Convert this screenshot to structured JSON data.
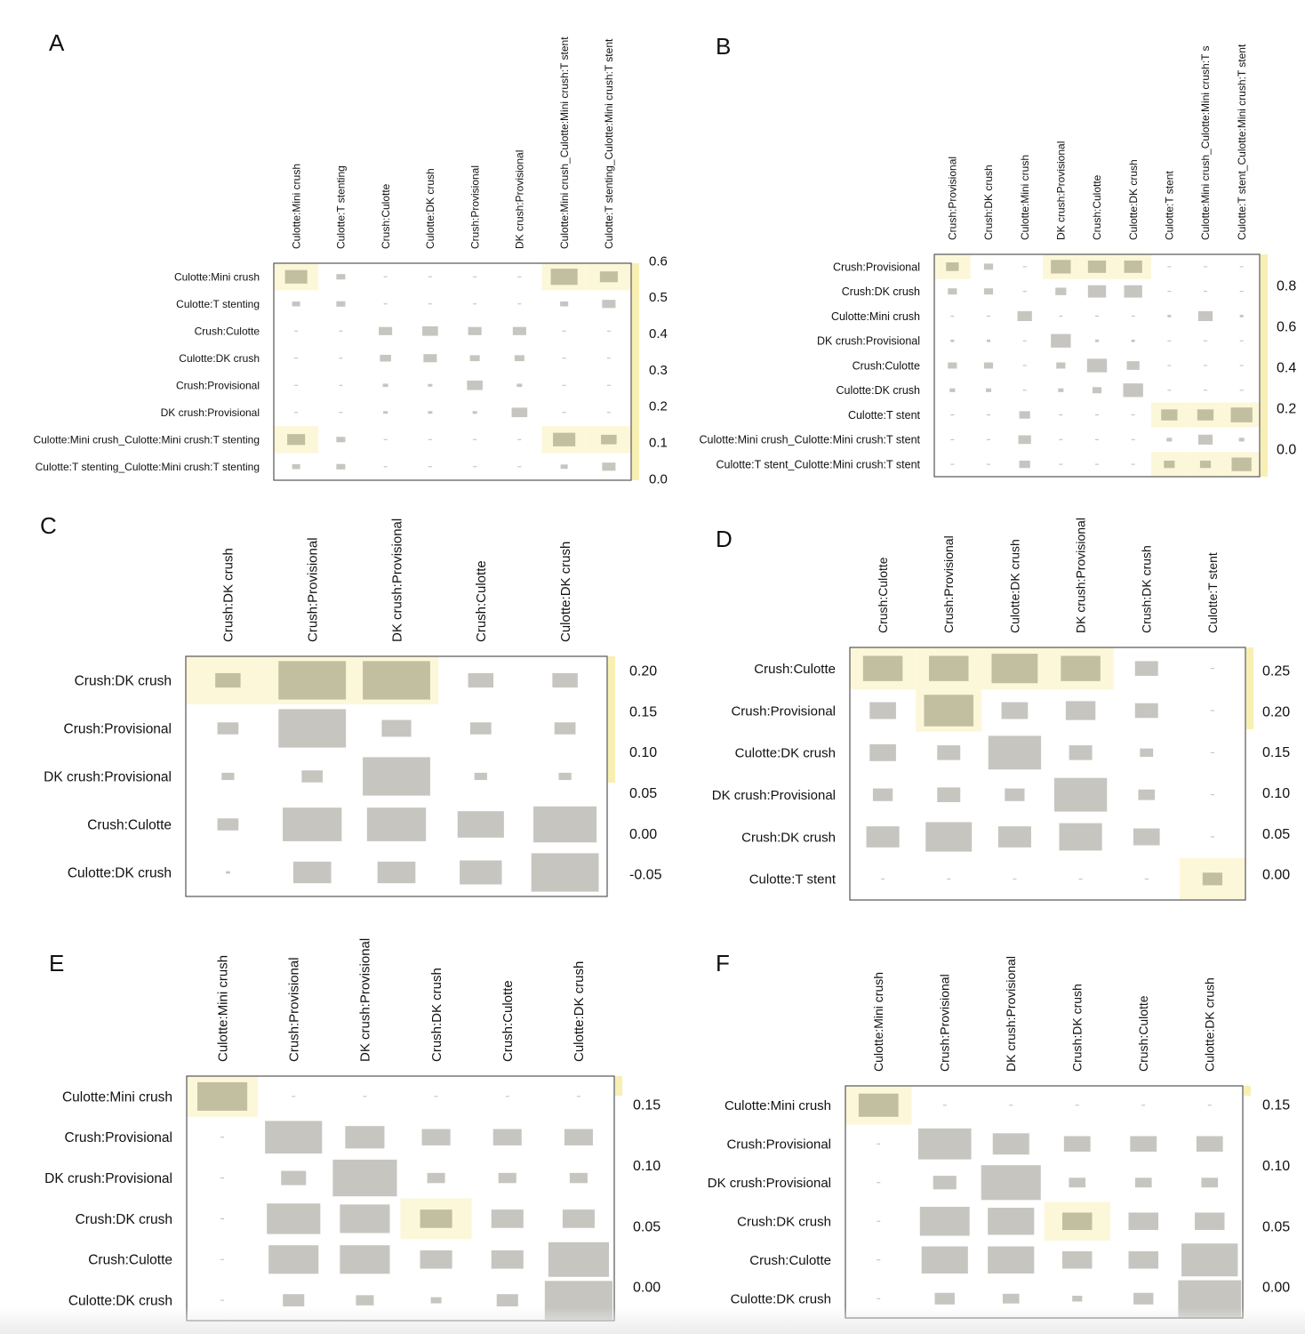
{
  "figure": {
    "description_panels": [
      "A",
      "B",
      "C",
      "D",
      "E",
      "F"
    ]
  },
  "chart_data": [
    {
      "panel": "A",
      "type": "heatmap",
      "title": "A",
      "row_labels": [
        "Culotte:Mini crush",
        "Culotte:T stenting",
        "Crush:Culotte",
        "Culotte:DK crush",
        "Crush:Provisional",
        "DK crush:Provisional",
        "Culotte:Mini crush_Culotte:Mini crush:T stenting",
        "Culotte:T stenting_Culotte:Mini crush:T stenting"
      ],
      "col_labels": [
        "Culotte:Mini crush",
        "Culotte:T stenting",
        "Crush:Culotte",
        "Culotte:DK crush",
        "Crush:Provisional",
        "DK crush:Provisional",
        "Culotte:Mini crush_Culotte:Mini crush:T stent",
        "Culotte:T stenting_Culotte:Mini crush:T stent"
      ],
      "colorbar_ticks": [
        "0.6",
        "0.5",
        "0.4",
        "0.3",
        "0.2",
        "0.1",
        "0.0"
      ],
      "values": [
        [
          0.5,
          0.2,
          0,
          0,
          0,
          0,
          0.6,
          0.4
        ],
        [
          0.18,
          0.2,
          0,
          0,
          0,
          0,
          0.18,
          0.3
        ],
        [
          0,
          0,
          0.3,
          0.35,
          0.3,
          0.3,
          0,
          0
        ],
        [
          0,
          0,
          0.25,
          0.3,
          0.22,
          0.22,
          0,
          0
        ],
        [
          0,
          0,
          0.12,
          0.1,
          0.35,
          0.12,
          0,
          0
        ],
        [
          0,
          0,
          0.1,
          0.1,
          0.1,
          0.35,
          0,
          0
        ],
        [
          0.4,
          0.2,
          0,
          0,
          0,
          0,
          0.5,
          0.35
        ],
        [
          0.18,
          0.2,
          0,
          0,
          0,
          0,
          0.16,
          0.3
        ]
      ],
      "highlight": [
        [
          0,
          0
        ],
        [
          0,
          6
        ],
        [
          0,
          7
        ],
        [
          6,
          0
        ],
        [
          6,
          6
        ],
        [
          6,
          7
        ]
      ]
    },
    {
      "panel": "B",
      "type": "heatmap",
      "title": "B",
      "row_labels": [
        "Crush:Provisional",
        "Crush:DK crush",
        "Culotte:Mini crush",
        "DK crush:Provisional",
        "Crush:Culotte",
        "Culotte:DK crush",
        "Culotte:T stent",
        "Culotte:Mini crush_Culotte:Mini crush:T stent",
        "Culotte:T stent_Culotte:Mini crush:T stent"
      ],
      "col_labels": [
        "Crush:Provisional",
        "Crush:DK crush",
        "Culotte:Mini crush",
        "DK crush:Provisional",
        "Crush:Culotte",
        "Culotte:DK crush",
        "Culotte:T stent",
        "Culotte:Mini crush_Culotte:Mini crush:T s",
        "Culotte:T stent_Culotte:Mini crush:T stent"
      ],
      "colorbar_ticks": [
        "0.8",
        "0.6",
        "0.4",
        "0.2",
        "0.0"
      ],
      "values": [
        [
          0.35,
          0.25,
          0,
          0.55,
          0.5,
          0.5,
          0,
          0,
          0
        ],
        [
          0.25,
          0.25,
          0,
          0.3,
          0.5,
          0.5,
          0,
          0,
          0
        ],
        [
          0,
          0,
          0.4,
          0,
          0,
          0,
          0.1,
          0.4,
          0.1
        ],
        [
          0.1,
          0.1,
          0,
          0.55,
          0.1,
          0.1,
          0,
          0,
          0
        ],
        [
          0.25,
          0.25,
          0,
          0.25,
          0.55,
          0.35,
          0,
          0,
          0
        ],
        [
          0.15,
          0.15,
          0,
          0.15,
          0.25,
          0.55,
          0,
          0,
          0
        ],
        [
          0,
          0,
          0.3,
          0,
          0,
          0,
          0.45,
          0.45,
          0.6
        ],
        [
          0,
          0,
          0.35,
          0,
          0,
          0,
          0.15,
          0.4,
          0.15
        ],
        [
          0,
          0,
          0.3,
          0,
          0,
          0,
          0.3,
          0.3,
          0.55
        ]
      ],
      "highlight": [
        [
          0,
          0
        ],
        [
          0,
          3
        ],
        [
          0,
          4
        ],
        [
          0,
          5
        ],
        [
          6,
          6
        ],
        [
          6,
          7
        ],
        [
          6,
          8
        ],
        [
          8,
          6
        ],
        [
          8,
          7
        ],
        [
          8,
          8
        ]
      ]
    },
    {
      "panel": "C",
      "type": "heatmap",
      "title": "C",
      "row_labels": [
        "Crush:DK crush",
        "Crush:Provisional",
        "DK crush:Provisional",
        "Crush:Culotte",
        "Culotte:DK crush"
      ],
      "col_labels": [
        "Crush:DK crush",
        "Crush:Provisional",
        "DK crush:Provisional",
        "Crush:Culotte",
        "Culotte:DK crush"
      ],
      "colorbar_ticks": [
        "0.20",
        "0.15",
        "0.10",
        "0.05",
        "0.00",
        "-0.05"
      ],
      "values": [
        [
          0.3,
          0.8,
          0.8,
          0.3,
          0.3
        ],
        [
          0.25,
          0.8,
          0.35,
          0.25,
          0.25
        ],
        [
          0.15,
          0.25,
          0.8,
          0.15,
          0.15
        ],
        [
          0.25,
          0.7,
          0.7,
          0.55,
          0.75
        ],
        [
          0.05,
          0.45,
          0.45,
          0.5,
          0.8
        ]
      ],
      "highlight": [
        [
          0,
          0
        ],
        [
          0,
          1
        ],
        [
          0,
          2
        ]
      ]
    },
    {
      "panel": "D",
      "type": "heatmap",
      "title": "D",
      "row_labels": [
        "Crush:Culotte",
        "Crush:Provisional",
        "Culotte:DK crush",
        "DK crush:Provisional",
        "Crush:DK crush",
        "Culotte:T stent"
      ],
      "col_labels": [
        "Crush:Culotte",
        "Crush:Provisional",
        "Culotte:DK crush",
        "DK crush:Provisional",
        "Crush:DK crush",
        "Culotte:T stent"
      ],
      "colorbar_ticks": [
        "0.25",
        "0.20",
        "0.15",
        "0.10",
        "0.05",
        "0.00"
      ],
      "values": [
        [
          0.6,
          0.6,
          0.7,
          0.6,
          0.35,
          0
        ],
        [
          0.4,
          0.75,
          0.4,
          0.45,
          0.35,
          0
        ],
        [
          0.4,
          0.35,
          0.8,
          0.35,
          0.2,
          0
        ],
        [
          0.3,
          0.35,
          0.3,
          0.8,
          0.25,
          0
        ],
        [
          0.5,
          0.7,
          0.5,
          0.65,
          0.4,
          0
        ],
        [
          0,
          0,
          0,
          0,
          0,
          0.3
        ]
      ],
      "highlight": [
        [
          0,
          0
        ],
        [
          0,
          1
        ],
        [
          0,
          2
        ],
        [
          0,
          3
        ],
        [
          1,
          1
        ],
        [
          5,
          5
        ]
      ]
    },
    {
      "panel": "E",
      "type": "heatmap",
      "title": "E",
      "row_labels": [
        "Culotte:Mini crush",
        "Crush:Provisional",
        "DK crush:Provisional",
        "Crush:DK crush",
        "Crush:Culotte",
        "Culotte:DK crush"
      ],
      "col_labels": [
        "Culotte:Mini crush",
        "Crush:Provisional",
        "DK crush:Provisional",
        "Crush:DK crush",
        "Crush:Culotte",
        "Culotte:DK crush"
      ],
      "colorbar_ticks": [
        "0.15",
        "0.10",
        "0.05",
        "0.00"
      ],
      "values": [
        [
          0.7,
          0,
          0,
          0,
          0,
          0
        ],
        [
          0,
          0.8,
          0.55,
          0.4,
          0.4,
          0.4
        ],
        [
          0,
          0.35,
          0.9,
          0.25,
          0.25,
          0.25
        ],
        [
          0,
          0.75,
          0.7,
          0.45,
          0.45,
          0.45
        ],
        [
          0,
          0.7,
          0.7,
          0.45,
          0.45,
          0.85
        ],
        [
          0,
          0.3,
          0.25,
          0.15,
          0.3,
          0.95
        ]
      ],
      "highlight": [
        [
          0,
          0
        ],
        [
          3,
          3
        ]
      ]
    },
    {
      "panel": "F",
      "type": "heatmap",
      "title": "F",
      "row_labels": [
        "Culotte:Mini crush",
        "Crush:Provisional",
        "DK crush:Provisional",
        "Crush:DK crush",
        "Crush:Culotte",
        "Culotte:DK crush"
      ],
      "col_labels": [
        "Culotte:Mini crush",
        "Crush:Provisional",
        "DK crush:Provisional",
        "Crush:DK crush",
        "Crush:Culotte",
        "Culotte:DK crush"
      ],
      "colorbar_ticks": [
        "0.15",
        "0.10",
        "0.05",
        "0.00"
      ],
      "values": [
        [
          0.6,
          0,
          0,
          0,
          0,
          0
        ],
        [
          0,
          0.8,
          0.55,
          0.4,
          0.4,
          0.4
        ],
        [
          0,
          0.35,
          0.9,
          0.25,
          0.25,
          0.25
        ],
        [
          0,
          0.75,
          0.7,
          0.45,
          0.45,
          0.45
        ],
        [
          0,
          0.7,
          0.7,
          0.45,
          0.45,
          0.85
        ],
        [
          0,
          0.3,
          0.25,
          0.15,
          0.3,
          0.95
        ]
      ],
      "highlight": [
        [
          0,
          0
        ],
        [
          3,
          3
        ]
      ]
    }
  ],
  "colors": {
    "cell": "#c6c5c0",
    "cell_highlight": "#c2bfa0",
    "highlight_bg": "#fdf7da",
    "colorbar": "#f6ea9a",
    "frame": "#555555",
    "dash": "#bbbbbb"
  }
}
